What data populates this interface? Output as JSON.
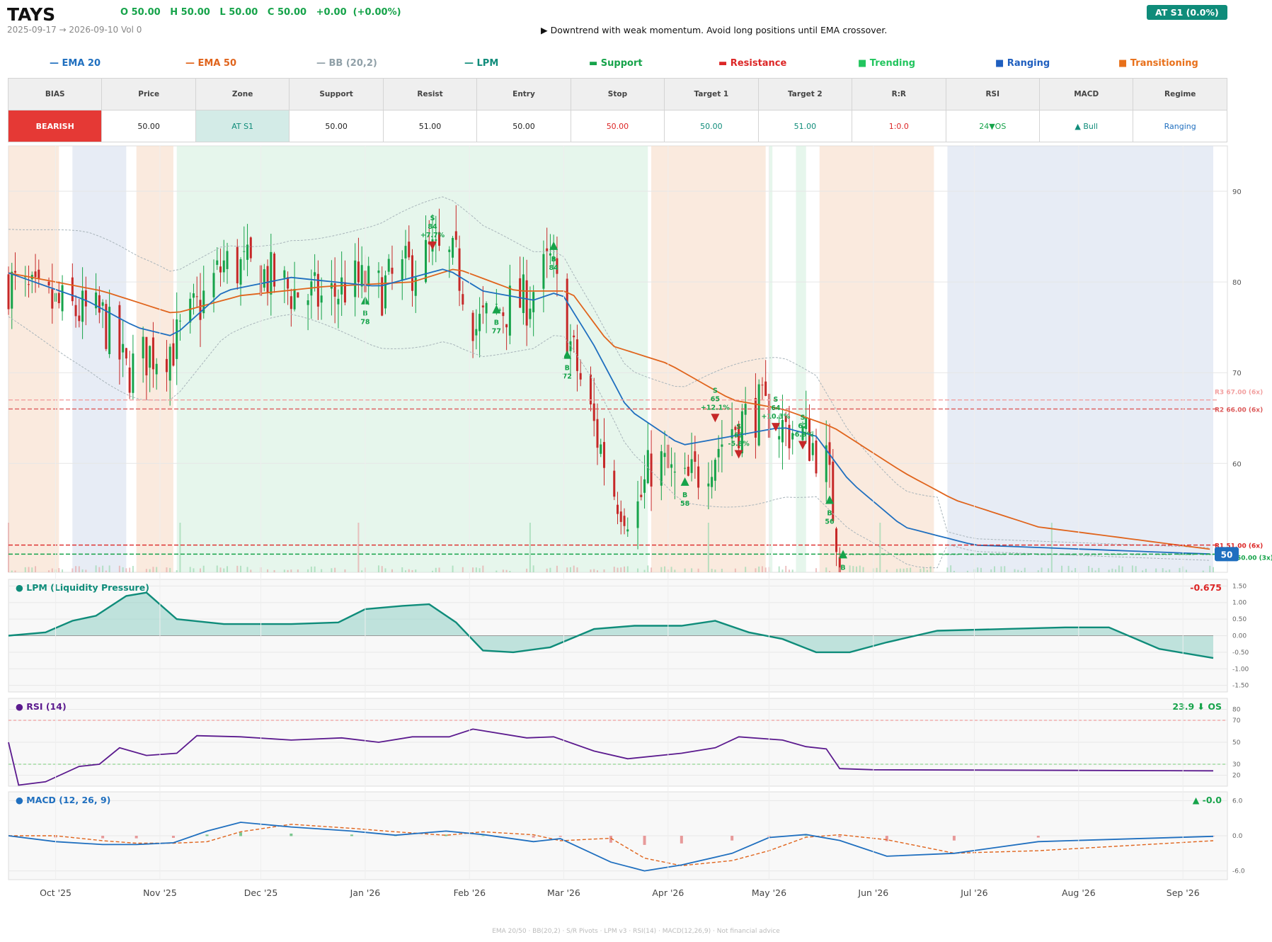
{
  "header": {
    "ticker": "TAYS",
    "ohlc": "O 50.00   H 50.00   L 50.00   C 50.00   +0.00  (+0.00%)",
    "range": "2025-09-17 → 2026-09-10   Vol 0",
    "summary": "▶  Downtrend with weak momentum. Avoid long positions until EMA crossover.",
    "zone_badge": "AT S1  (0.0%)"
  },
  "legend": [
    {
      "label": "— EMA 20",
      "color": "#1f6fbf"
    },
    {
      "label": "— EMA 50",
      "color": "#e0641c"
    },
    {
      "label": "— BB (20,2)",
      "color": "#90a0a8"
    },
    {
      "label": "— LPM",
      "color": "#0f8c7a"
    },
    {
      "label": "▬  Support",
      "color": "#16a34a"
    },
    {
      "label": "▬  Resistance",
      "color": "#dc2626"
    },
    {
      "label": "■  Trending",
      "color": "#22c55e"
    },
    {
      "label": "■  Ranging",
      "color": "#1f5fbf"
    },
    {
      "label": "■  Transitioning",
      "color": "#e8701a"
    }
  ],
  "stats": {
    "headers": [
      "BIAS",
      "Price",
      "Zone",
      "Support",
      "Resist",
      "Entry",
      "Stop",
      "Target 1",
      "Target 2",
      "R:R",
      "RSI",
      "MACD",
      "Regime"
    ],
    "values": [
      {
        "text": "BEARISH",
        "color": "#ffffff",
        "bg": "#e53935"
      },
      {
        "text": "50.00",
        "color": "#222222",
        "bg": "#ffffff"
      },
      {
        "text": "AT S1",
        "color": "#0f8c7a",
        "bg": "#d3ebe7"
      },
      {
        "text": "50.00",
        "color": "#222222",
        "bg": "#ffffff"
      },
      {
        "text": "51.00",
        "color": "#222222",
        "bg": "#ffffff"
      },
      {
        "text": "50.00",
        "color": "#222222",
        "bg": "#ffffff"
      },
      {
        "text": "50.00",
        "color": "#dc2626",
        "bg": "#ffffff"
      },
      {
        "text": "50.00",
        "color": "#0f8c7a",
        "bg": "#ffffff"
      },
      {
        "text": "51.00",
        "color": "#0f8c7a",
        "bg": "#ffffff"
      },
      {
        "text": "1:0.0",
        "color": "#dc2626",
        "bg": "#ffffff"
      },
      {
        "text": "24▼OS",
        "color": "#16a34a",
        "bg": "#ffffff"
      },
      {
        "text": "▲ Bull",
        "color": "#0f8c7a",
        "bg": "#ffffff"
      },
      {
        "text": "Ranging",
        "color": "#1f6fbf",
        "bg": "#ffffff"
      }
    ]
  },
  "chart_data": [
    {
      "type": "candlestick",
      "title": "",
      "x_start": "2025-09-17",
      "x_end": "2026-09-10",
      "ylim": [
        48,
        95
      ],
      "yticks": [
        60,
        70,
        80,
        90
      ],
      "close_path": [
        [
          "2025-09-17",
          80
        ],
        [
          "2025-09-25",
          78
        ],
        [
          "2025-10-05",
          77
        ],
        [
          "2025-10-15",
          76
        ],
        [
          "2025-10-22",
          70
        ],
        [
          "2025-10-28",
          72
        ],
        [
          "2025-11-05",
          73
        ],
        [
          "2025-11-12",
          77
        ],
        [
          "2025-11-20",
          82
        ],
        [
          "2025-12-01",
          81
        ],
        [
          "2025-12-10",
          79
        ],
        [
          "2025-12-20",
          78
        ],
        [
          "2025-12-28",
          80
        ],
        [
          "2026-01-05",
          79
        ],
        [
          "2026-01-12",
          81
        ],
        [
          "2026-01-20",
          83
        ],
        [
          "2026-01-28",
          82
        ],
        [
          "2026-02-03",
          75
        ],
        [
          "2026-02-10",
          77
        ],
        [
          "2026-02-18",
          78
        ],
        [
          "2026-02-25",
          82
        ],
        [
          "2026-03-03",
          73
        ],
        [
          "2026-03-10",
          64
        ],
        [
          "2026-03-16",
          57
        ],
        [
          "2026-03-22",
          54
        ],
        [
          "2026-03-28",
          61
        ],
        [
          "2026-04-05",
          57
        ],
        [
          "2026-04-12",
          60
        ],
        [
          "2026-04-20",
          64
        ],
        [
          "2026-04-28",
          66
        ],
        [
          "2026-05-05",
          64
        ],
        [
          "2026-05-12",
          63
        ],
        [
          "2026-05-18",
          60
        ],
        [
          "2026-05-22",
          50
        ],
        [
          "2026-09-10",
          50
        ]
      ],
      "ema20_path": [
        [
          "2025-09-17",
          81
        ],
        [
          "2025-10-10",
          78
        ],
        [
          "2025-10-25",
          75
        ],
        [
          "2025-11-05",
          74
        ],
        [
          "2025-11-20",
          79
        ],
        [
          "2025-12-10",
          80.5
        ],
        [
          "2026-01-05",
          79.5
        ],
        [
          "2026-01-25",
          81.5
        ],
        [
          "2026-02-05",
          79
        ],
        [
          "2026-02-20",
          78
        ],
        [
          "2026-02-28",
          79
        ],
        [
          "2026-03-10",
          73
        ],
        [
          "2026-03-20",
          66
        ],
        [
          "2026-04-05",
          62
        ],
        [
          "2026-04-20",
          63
        ],
        [
          "2026-05-05",
          64
        ],
        [
          "2026-05-15",
          63
        ],
        [
          "2026-05-25",
          58
        ],
        [
          "2026-06-10",
          53
        ],
        [
          "2026-07-01",
          51
        ],
        [
          "2026-09-10",
          50
        ]
      ],
      "ema50_path": [
        [
          "2025-09-17",
          81
        ],
        [
          "2025-10-15",
          79
        ],
        [
          "2025-11-05",
          76.5
        ],
        [
          "2025-11-25",
          78.5
        ],
        [
          "2025-12-20",
          79.5
        ],
        [
          "2026-01-15",
          80
        ],
        [
          "2026-01-28",
          81.5
        ],
        [
          "2026-02-15",
          79
        ],
        [
          "2026-03-03",
          79
        ],
        [
          "2026-03-15",
          73
        ],
        [
          "2026-04-01",
          71
        ],
        [
          "2026-04-20",
          67
        ],
        [
          "2026-05-05",
          66
        ],
        [
          "2026-05-20",
          64
        ],
        [
          "2026-06-10",
          59
        ],
        [
          "2026-06-25",
          56
        ],
        [
          "2026-07-20",
          53
        ],
        [
          "2026-09-10",
          50.5
        ]
      ],
      "regimes": [
        {
          "from": "2025-09-17",
          "to": "2025-10-02",
          "type": "Transitioning"
        },
        {
          "from": "2025-10-06",
          "to": "2025-10-22",
          "type": "Ranging"
        },
        {
          "from": "2025-10-25",
          "to": "2025-11-05",
          "type": "Transitioning"
        },
        {
          "from": "2025-11-06",
          "to": "2026-03-26",
          "type": "Trending"
        },
        {
          "from": "2026-03-27",
          "to": "2026-04-30",
          "type": "Transitioning"
        },
        {
          "from": "2026-05-01",
          "to": "2026-05-02",
          "type": "Trending"
        },
        {
          "from": "2026-05-09",
          "to": "2026-05-12",
          "type": "Trending"
        },
        {
          "from": "2026-05-16",
          "to": "2026-06-19",
          "type": "Transitioning"
        },
        {
          "from": "2026-06-23",
          "to": "2026-09-10",
          "type": "Ranging"
        }
      ],
      "levels": [
        {
          "label": "R3 67.00 (6x)",
          "value": 67,
          "color": "#f2a0a0"
        },
        {
          "label": "R2 66.00 (6x)",
          "value": 66,
          "color": "#dc5a5a"
        },
        {
          "label": "R1 51.00 (6x)",
          "value": 51,
          "color": "#dc2626"
        },
        {
          "label": "50.00 (3x)",
          "value": 50,
          "color": "#16a34a"
        }
      ],
      "last_price_label": "50",
      "signals": [
        {
          "date": "2026-01-01",
          "price": 78,
          "side": "B",
          "lines": [
            "B",
            "78"
          ]
        },
        {
          "date": "2026-01-21",
          "price": 84,
          "side": "S",
          "lines": [
            "S",
            "84",
            "+7.7%"
          ]
        },
        {
          "date": "2026-02-09",
          "price": 77,
          "side": "B",
          "lines": [
            "B",
            "77"
          ]
        },
        {
          "date": "2026-02-26",
          "price": 84,
          "side": "B",
          "lines": [
            "B",
            "84"
          ]
        },
        {
          "date": "2026-03-02",
          "price": 72,
          "side": "B",
          "lines": [
            "B",
            "72"
          ]
        },
        {
          "date": "2026-04-06",
          "price": 58,
          "side": "B",
          "lines": [
            "B",
            "58"
          ]
        },
        {
          "date": "2026-04-15",
          "price": 65,
          "side": "S",
          "lines": [
            "S",
            "65",
            "+12.1%"
          ]
        },
        {
          "date": "2026-04-22",
          "price": 61,
          "side": "S",
          "lines": [
            "S",
            "61",
            "-5.8%"
          ]
        },
        {
          "date": "2026-05-03",
          "price": 64,
          "side": "S",
          "lines": [
            "S",
            "64",
            "+10.3%"
          ]
        },
        {
          "date": "2026-05-11",
          "price": 62,
          "side": "S",
          "lines": [
            "S",
            "62",
            "-6.9%"
          ]
        },
        {
          "date": "2026-05-19",
          "price": 56,
          "side": "B",
          "lines": [
            "B",
            "56"
          ]
        },
        {
          "date": "2026-05-23",
          "price": 50,
          "side": "B",
          "lines": [
            "B"
          ]
        }
      ]
    },
    {
      "type": "area",
      "title": "● LPM (Liquidity Pressure)",
      "last_value_label": "-0.675",
      "ylim": [
        -1.7,
        1.7
      ],
      "yticks": [
        "1.50",
        "1.00",
        "0.50",
        "0.00",
        "-0.50",
        "-1.00",
        "-1.50"
      ],
      "x": [
        "2025-09-17",
        "2025-09-28",
        "2025-10-06",
        "2025-10-13",
        "2025-10-22",
        "2025-10-28",
        "2025-11-06",
        "2025-11-20",
        "2025-12-10",
        "2025-12-24",
        "2026-01-01",
        "2026-01-12",
        "2026-01-20",
        "2026-01-28",
        "2026-02-05",
        "2026-02-14",
        "2026-02-25",
        "2026-03-10",
        "2026-03-22",
        "2026-04-05",
        "2026-04-15",
        "2026-04-25",
        "2026-05-05",
        "2026-05-15",
        "2026-05-25",
        "2026-06-05",
        "2026-06-20",
        "2026-07-10",
        "2026-07-28",
        "2026-08-10",
        "2026-08-25",
        "2026-09-10"
      ],
      "values": [
        0.0,
        0.1,
        0.45,
        0.6,
        1.2,
        1.3,
        0.5,
        0.35,
        0.35,
        0.4,
        0.8,
        0.9,
        0.95,
        0.4,
        -0.45,
        -0.5,
        -0.35,
        0.2,
        0.3,
        0.3,
        0.45,
        0.1,
        -0.1,
        -0.5,
        -0.5,
        -0.2,
        0.15,
        0.2,
        0.25,
        0.25,
        -0.4,
        -0.675
      ]
    },
    {
      "type": "line",
      "title": "● RSI (14)",
      "last_value_label": "23.9 ⬇ OS",
      "ylim": [
        10,
        90
      ],
      "yticks": [
        80,
        70,
        50,
        30,
        20
      ],
      "x": [
        "2025-09-17",
        "2025-09-20",
        "2025-09-28",
        "2025-10-08",
        "2025-10-14",
        "2025-10-20",
        "2025-10-28",
        "2025-11-06",
        "2025-11-12",
        "2025-11-25",
        "2025-12-10",
        "2025-12-25",
        "2026-01-05",
        "2026-01-15",
        "2026-01-26",
        "2026-02-02",
        "2026-02-18",
        "2026-02-26",
        "2026-03-10",
        "2026-03-20",
        "2026-04-05",
        "2026-04-15",
        "2026-04-22",
        "2026-05-05",
        "2026-05-12",
        "2026-05-18",
        "2026-05-22",
        "2026-06-01",
        "2026-09-10"
      ],
      "values": [
        50,
        11,
        14,
        28,
        30,
        45,
        38,
        40,
        56,
        55,
        52,
        54,
        50,
        55,
        55,
        62,
        54,
        55,
        42,
        35,
        40,
        45,
        55,
        52,
        46,
        44,
        26,
        25,
        24
      ]
    },
    {
      "type": "line",
      "title": "● MACD (12, 26, 9)",
      "last_value_label": "▲ -0.0",
      "ylim": [
        -7.5,
        7.5
      ],
      "yticks": [
        "6.0",
        "0.0",
        "-6.0"
      ],
      "x": [
        "2025-09-17",
        "2025-10-01",
        "2025-10-15",
        "2025-10-25",
        "2025-11-05",
        "2025-11-15",
        "2025-11-25",
        "2025-12-10",
        "2025-12-28",
        "2026-01-10",
        "2026-01-25",
        "2026-02-05",
        "2026-02-20",
        "2026-02-28",
        "2026-03-15",
        "2026-03-25",
        "2026-04-05",
        "2026-04-20",
        "2026-05-01",
        "2026-05-12",
        "2026-05-22",
        "2026-06-05",
        "2026-06-25",
        "2026-07-20",
        "2026-09-10"
      ],
      "values": [
        0,
        -1.0,
        -1.5,
        -1.5,
        -1.2,
        0.8,
        2.3,
        1.5,
        0.8,
        0.1,
        0.8,
        0.2,
        -1.0,
        -0.5,
        -4.5,
        -6.0,
        -5.0,
        -3.0,
        -0.3,
        0.2,
        -0.8,
        -3.5,
        -3.0,
        -1.0,
        -0.1
      ]
    }
  ],
  "x_axis_labels": [
    "Oct '25",
    "Nov '25",
    "Dec '25",
    "Jan '26",
    "Feb '26",
    "Mar '26",
    "Apr '26",
    "May '26",
    "Jun '26",
    "Jul '26",
    "Aug '26",
    "Sep '26"
  ],
  "footer": "EMA 20/50  ·  BB(20,2)  ·  S/R Pivots  ·  LPM v3  ·  RSI(14)  ·  MACD(12,26,9)  ·  Not financial advice"
}
